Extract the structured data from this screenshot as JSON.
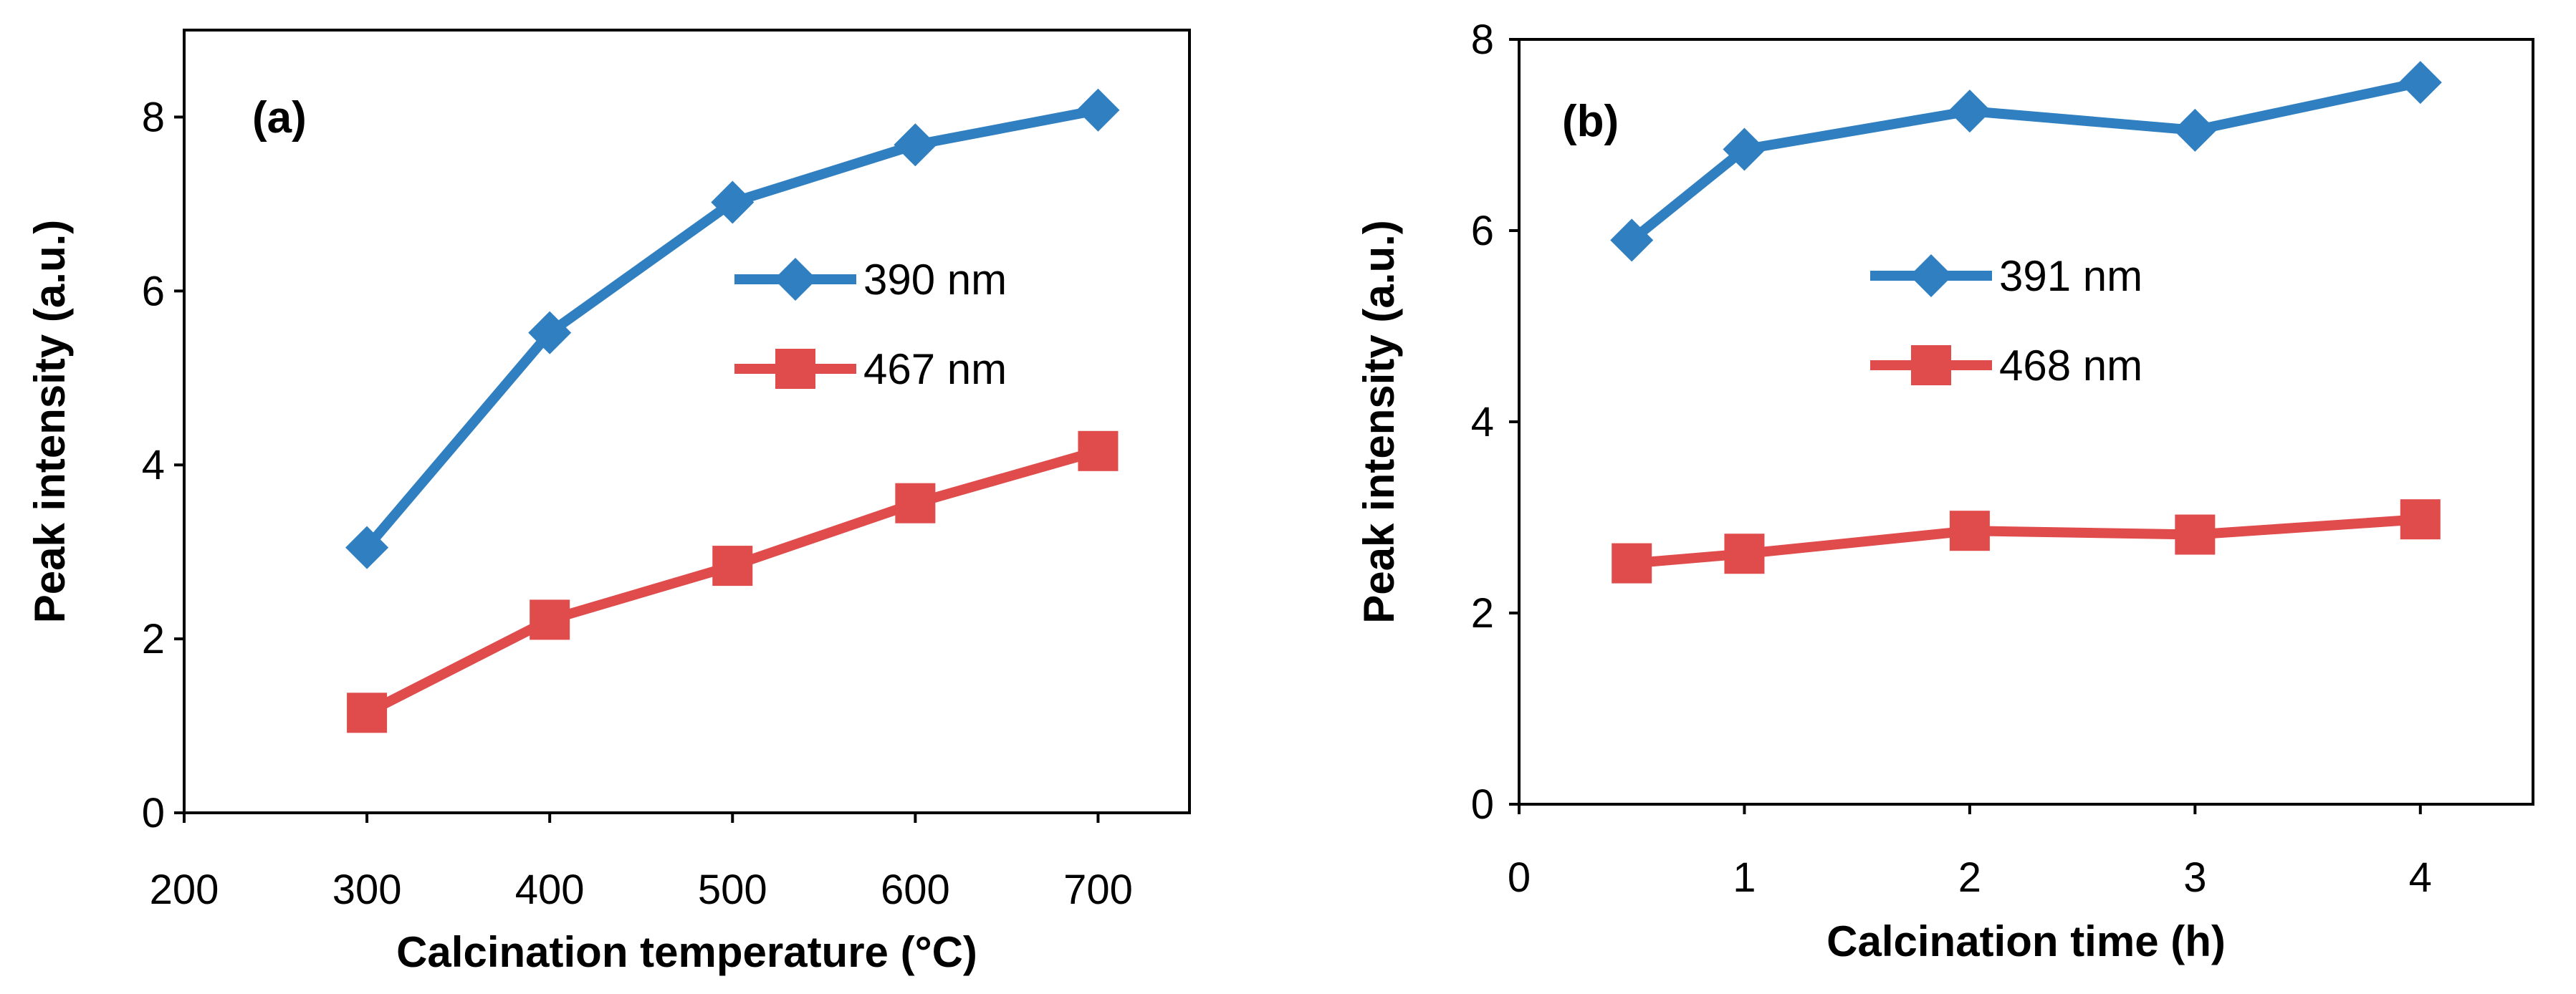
{
  "chart_data": [
    {
      "type": "line",
      "panel_label": "(a)",
      "xlabel": "Calcination temperature (°C)",
      "ylabel": "Peak intensity (a.u.)",
      "xlim": [
        200,
        750
      ],
      "ylim": [
        0,
        9
      ],
      "xticks": [
        200,
        300,
        400,
        500,
        600,
        700
      ],
      "yticks": [
        0,
        2,
        4,
        6,
        8
      ],
      "grid": false,
      "legend_position": "center-right",
      "series": [
        {
          "name": "390 nm",
          "color": "#2f7fc1",
          "marker": "diamond",
          "x": [
            300,
            400,
            500,
            600,
            700
          ],
          "values": [
            3.05,
            5.52,
            7.02,
            7.68,
            8.08
          ]
        },
        {
          "name": "467 nm",
          "color": "#e04b4b",
          "marker": "square",
          "x": [
            300,
            400,
            500,
            600,
            700
          ],
          "values": [
            1.15,
            2.22,
            2.84,
            3.56,
            4.16
          ]
        }
      ]
    },
    {
      "type": "line",
      "panel_label": "(b)",
      "xlabel": "Calcination time (h)",
      "ylabel": "Peak intensity (a.u.)",
      "xlim": [
        0,
        4.5
      ],
      "ylim": [
        0,
        8
      ],
      "xticks": [
        0,
        1,
        2,
        3,
        4
      ],
      "yticks": [
        0,
        2,
        4,
        6,
        8
      ],
      "grid": false,
      "legend_position": "center",
      "series": [
        {
          "name": "391 nm",
          "color": "#2f7fc1",
          "marker": "diamond",
          "x": [
            0.5,
            1,
            2,
            3,
            4
          ],
          "values": [
            5.9,
            6.85,
            7.25,
            7.05,
            7.55
          ]
        },
        {
          "name": "468 nm",
          "color": "#e04b4b",
          "marker": "square",
          "x": [
            0.5,
            1,
            2,
            3,
            4
          ],
          "values": [
            2.52,
            2.62,
            2.86,
            2.82,
            2.98
          ]
        }
      ]
    }
  ]
}
